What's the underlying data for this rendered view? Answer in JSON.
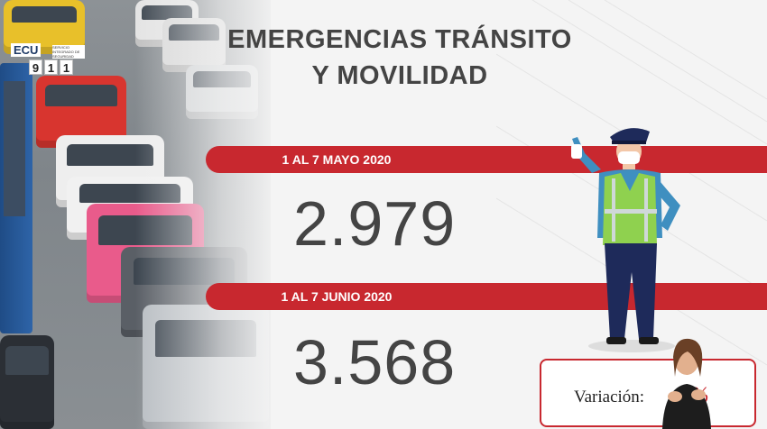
{
  "logo": {
    "brand": "ECU",
    "subtitle": "SERVICIO INTEGRADO DE SEGURIDAD",
    "digits": [
      "9",
      "1",
      "1"
    ]
  },
  "title": {
    "line1": "EMERGENCIAS TRÁNSITO",
    "line2": "Y MOVILIDAD"
  },
  "periods": [
    {
      "label": "1 AL 7 MAYO 2020",
      "value": "2.979"
    },
    {
      "label": "1 AL 7 JUNIO 2020",
      "value": "3.568"
    }
  ],
  "variation": {
    "label": "Variación:",
    "value": "%"
  },
  "colors": {
    "accent": "#c8282f",
    "text": "#444444",
    "vest": "#8fd14f",
    "uniform": "#1e2a5a"
  },
  "icons": {
    "officer": "traffic-officer-illustration",
    "interpreter": "sign-language-interpreter"
  }
}
